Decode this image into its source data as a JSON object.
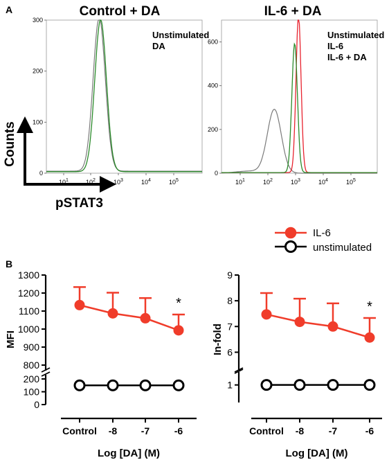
{
  "panels": {
    "a_label": "A",
    "b_label": "B"
  },
  "hist": [
    {
      "title": "Control + DA",
      "ylim": [
        0,
        300
      ],
      "yticks": [
        "0",
        "100",
        "200",
        "300"
      ],
      "legend": [
        {
          "text": "Unstimulated",
          "color": "#000000"
        },
        {
          "text": "DA",
          "color": "#2a8a2a"
        }
      ]
    },
    {
      "title": "IL-6 + DA",
      "ylim": [
        0,
        700
      ],
      "yticks": [
        "0",
        "200",
        "400",
        "600"
      ],
      "legend": [
        {
          "text": "Unstimulated",
          "color": "#000000"
        },
        {
          "text": "IL-6",
          "color": "#e8222e"
        },
        {
          "text": "IL-6 + DA",
          "color": "#2a8a2a"
        }
      ]
    }
  ],
  "hist_xticks": [
    {
      "base": "10",
      "exp": "1"
    },
    {
      "base": "10",
      "exp": "2"
    },
    {
      "base": "10",
      "exp": "3"
    },
    {
      "base": "10",
      "exp": "4"
    },
    {
      "base": "10",
      "exp": "5"
    }
  ],
  "arrows": {
    "y_label": "Counts",
    "x_label": "pSTAT3"
  },
  "legend_b": [
    {
      "text": "IL-6",
      "style": "filled"
    },
    {
      "text": "unstimulated",
      "style": "open"
    }
  ],
  "colors": {
    "il6": "#f03c2a",
    "green": "#2a8a2a",
    "gray": "#7a7a7a",
    "red_hist": "#e8222e"
  },
  "chart_data": [
    {
      "type": "line",
      "panel": "B-left",
      "categories": [
        "Control",
        "-8",
        "-7",
        "-6"
      ],
      "xlabel": "Log [DA] (M)",
      "ylabel": "MFI",
      "ylim_upper": [
        800,
        1300
      ],
      "ylim_lower": [
        0,
        200
      ],
      "yticks_upper": [
        "800",
        "900",
        "1000",
        "1100",
        "1200",
        "1300"
      ],
      "yticks_lower": [
        "0",
        "100",
        "200"
      ],
      "series": [
        {
          "name": "IL-6",
          "values": [
            1133,
            1087,
            1060,
            993
          ],
          "error": [
            100,
            115,
            112,
            88
          ]
        },
        {
          "name": "unstimulated",
          "values": [
            150,
            150,
            150,
            150
          ]
        }
      ],
      "annotation": "*"
    },
    {
      "type": "line",
      "panel": "B-right",
      "categories": [
        "Control",
        "-8",
        "-7",
        "-6"
      ],
      "xlabel": "Log [DA] (M)",
      "ylabel": "In-fold",
      "ylim_upper": [
        5.5,
        9
      ],
      "ylim_lower": [
        0,
        1.5
      ],
      "yticks_upper": [
        "6",
        "7",
        "8",
        "9"
      ],
      "yticks_lower": [
        "1"
      ],
      "series": [
        {
          "name": "IL-6",
          "values": [
            7.47,
            7.18,
            7.0,
            6.57
          ],
          "error": [
            0.83,
            0.9,
            0.9,
            0.76
          ]
        },
        {
          "name": "unstimulated",
          "values": [
            1.0,
            1.0,
            1.0,
            1.0
          ]
        }
      ],
      "annotation": "*"
    }
  ]
}
